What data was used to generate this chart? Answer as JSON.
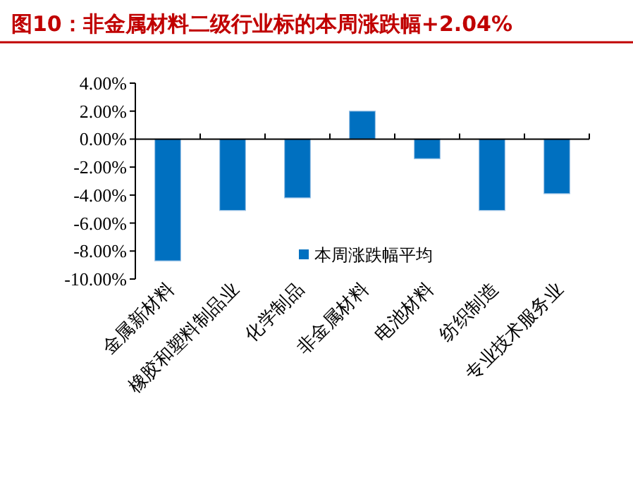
{
  "chart_data": {
    "type": "bar",
    "title": "图10：非金属材料二级行业标的本周涨跌幅+2.04%",
    "categories": [
      "金属新材料",
      "橡胶和塑料制品业",
      "化学制品",
      "非金属材料",
      "电池材料",
      "纺织制造",
      "专业技术服务业"
    ],
    "series": [
      {
        "name": "本周涨跌幅平均",
        "color": "#0070c0",
        "values": [
          -8.7,
          -5.1,
          -4.2,
          2.0,
          -1.4,
          -5.1,
          -3.9
        ]
      }
    ],
    "ylim": [
      -10,
      4
    ],
    "yticks": [
      {
        "value": 4,
        "label": "4.00%"
      },
      {
        "value": 2,
        "label": "2.00%"
      },
      {
        "value": 0,
        "label": "0.00%"
      },
      {
        "value": -2,
        "label": "-2.00%"
      },
      {
        "value": -4,
        "label": "-4.00%"
      },
      {
        "value": -6,
        "label": "-6.00%"
      },
      {
        "value": -8,
        "label": "-8.00%"
      },
      {
        "value": -10,
        "label": "-10.00%"
      }
    ],
    "legend": "bottom"
  }
}
